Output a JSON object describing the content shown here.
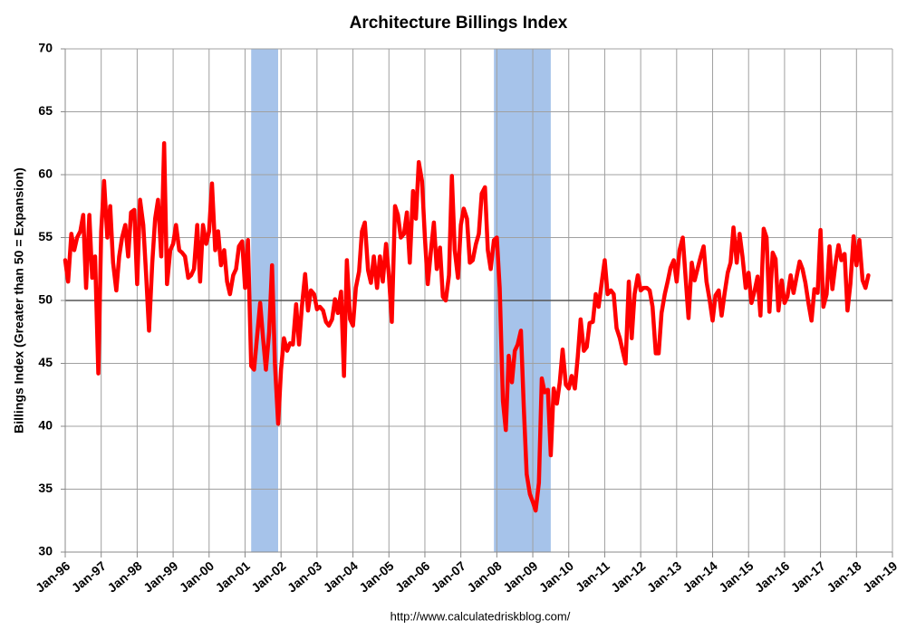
{
  "chart_data": {
    "type": "line",
    "title": "Architecture Billings Index",
    "y_label": "Billings Index (Greater than 50 = Expansion)",
    "source": "http://www.calculatedriskblog.com/",
    "xlim": [
      1996,
      2019
    ],
    "xticks": [
      {
        "value": 1996,
        "label": "Jan-96"
      },
      {
        "value": 1997,
        "label": "Jan-97"
      },
      {
        "value": 1998,
        "label": "Jan-98"
      },
      {
        "value": 1999,
        "label": "Jan-99"
      },
      {
        "value": 2000,
        "label": "Jan-00"
      },
      {
        "value": 2001,
        "label": "Jan-01"
      },
      {
        "value": 2002,
        "label": "Jan-02"
      },
      {
        "value": 2003,
        "label": "Jan-03"
      },
      {
        "value": 2004,
        "label": "Jan-04"
      },
      {
        "value": 2005,
        "label": "Jan-05"
      },
      {
        "value": 2006,
        "label": "Jan-06"
      },
      {
        "value": 2007,
        "label": "Jan-07"
      },
      {
        "value": 2008,
        "label": "Jan-08"
      },
      {
        "value": 2009,
        "label": "Jan-09"
      },
      {
        "value": 2010,
        "label": "Jan-10"
      },
      {
        "value": 2011,
        "label": "Jan-11"
      },
      {
        "value": 2012,
        "label": "Jan-12"
      },
      {
        "value": 2013,
        "label": "Jan-13"
      },
      {
        "value": 2014,
        "label": "Jan-14"
      },
      {
        "value": 2015,
        "label": "Jan-15"
      },
      {
        "value": 2016,
        "label": "Jan-16"
      },
      {
        "value": 2017,
        "label": "Jan-17"
      },
      {
        "value": 2018,
        "label": "Jan-18"
      },
      {
        "value": 2019,
        "label": "Jan-19"
      }
    ],
    "ylim": [
      30,
      70
    ],
    "yticks": [
      30,
      35,
      40,
      45,
      50,
      55,
      60,
      65,
      70
    ],
    "grid": true,
    "reference_line": 50,
    "recessions": [
      [
        2001.17,
        2001.92
      ],
      [
        2007.92,
        2009.5
      ]
    ],
    "recession_color": "#a6c3ea",
    "series": [
      {
        "name": "Billings Index",
        "color": "#ff0000",
        "x": [
          1996,
          1996.08,
          1996.17,
          1996.25,
          1996.33,
          1996.42,
          1996.5,
          1996.58,
          1996.67,
          1996.75,
          1996.83,
          1996.92,
          1997,
          1997.08,
          1997.17,
          1997.25,
          1997.33,
          1997.42,
          1997.5,
          1997.58,
          1997.67,
          1997.75,
          1997.83,
          1997.92,
          1998,
          1998.08,
          1998.17,
          1998.25,
          1998.33,
          1998.42,
          1998.5,
          1998.58,
          1998.67,
          1998.75,
          1998.83,
          1998.92,
          1999,
          1999.08,
          1999.17,
          1999.25,
          1999.33,
          1999.42,
          1999.5,
          1999.58,
          1999.67,
          1999.75,
          1999.83,
          1999.92,
          2000,
          2000.08,
          2000.17,
          2000.25,
          2000.33,
          2000.42,
          2000.5,
          2000.58,
          2000.67,
          2000.75,
          2000.83,
          2000.92,
          2001,
          2001.08,
          2001.17,
          2001.25,
          2001.33,
          2001.42,
          2001.5,
          2001.58,
          2001.67,
          2001.75,
          2001.83,
          2001.92,
          2002,
          2002.08,
          2002.17,
          2002.25,
          2002.33,
          2002.42,
          2002.5,
          2002.58,
          2002.67,
          2002.75,
          2002.83,
          2002.92,
          2003,
          2003.08,
          2003.17,
          2003.25,
          2003.33,
          2003.42,
          2003.5,
          2003.58,
          2003.67,
          2003.75,
          2003.83,
          2003.92,
          2004,
          2004.08,
          2004.17,
          2004.25,
          2004.33,
          2004.42,
          2004.5,
          2004.58,
          2004.67,
          2004.75,
          2004.83,
          2004.92,
          2005,
          2005.08,
          2005.17,
          2005.25,
          2005.33,
          2005.42,
          2005.5,
          2005.58,
          2005.67,
          2005.75,
          2005.83,
          2005.92,
          2006,
          2006.08,
          2006.17,
          2006.25,
          2006.33,
          2006.42,
          2006.5,
          2006.58,
          2006.67,
          2006.75,
          2006.83,
          2006.92,
          2007,
          2007.08,
          2007.17,
          2007.25,
          2007.33,
          2007.42,
          2007.5,
          2007.58,
          2007.67,
          2007.75,
          2007.83,
          2007.92,
          2008,
          2008.08,
          2008.17,
          2008.25,
          2008.33,
          2008.42,
          2008.5,
          2008.58,
          2008.67,
          2008.75,
          2008.83,
          2008.92,
          2009,
          2009.08,
          2009.17,
          2009.25,
          2009.33,
          2009.42,
          2009.5,
          2009.58,
          2009.67,
          2009.75,
          2009.83,
          2009.92,
          2010,
          2010.08,
          2010.17,
          2010.25,
          2010.33,
          2010.42,
          2010.5,
          2010.58,
          2010.67,
          2010.75,
          2010.83,
          2010.92,
          2011,
          2011.08,
          2011.17,
          2011.25,
          2011.33,
          2011.42,
          2011.5,
          2011.58,
          2011.67,
          2011.75,
          2011.83,
          2011.92,
          2012,
          2012.08,
          2012.17,
          2012.25,
          2012.33,
          2012.42,
          2012.5,
          2012.58,
          2012.67,
          2012.75,
          2012.83,
          2012.92,
          2013,
          2013.08,
          2013.17,
          2013.25,
          2013.33,
          2013.42,
          2013.5,
          2013.58,
          2013.67,
          2013.75,
          2013.83,
          2013.92,
          2014,
          2014.08,
          2014.17,
          2014.25,
          2014.33,
          2014.42,
          2014.5,
          2014.58,
          2014.67,
          2014.75,
          2014.83,
          2014.92,
          2015,
          2015.08,
          2015.17,
          2015.25,
          2015.33,
          2015.42,
          2015.5,
          2015.58,
          2015.67,
          2015.75,
          2015.83,
          2015.92,
          2016,
          2016.08,
          2016.17,
          2016.25,
          2016.33,
          2016.42,
          2016.5,
          2016.58,
          2016.67,
          2016.75,
          2016.83,
          2016.92,
          2017,
          2017.08,
          2017.17,
          2017.25,
          2017.33,
          2017.42,
          2017.5,
          2017.58,
          2017.67,
          2017.75,
          2017.83,
          2017.92,
          2018,
          2018.08,
          2018.17,
          2018.25,
          2018.33
        ],
        "values": [
          53.2,
          51.5,
          55.3,
          54,
          55,
          55.5,
          56.8,
          51,
          56.8,
          51.8,
          53.5,
          44.2,
          55.5,
          59.5,
          55,
          57.5,
          53,
          50.8,
          53.5,
          55,
          56,
          53.5,
          57,
          57.2,
          51.3,
          58,
          56,
          52,
          47.6,
          53,
          56.5,
          58,
          53.5,
          62.5,
          51.3,
          54,
          54.5,
          56,
          54,
          53.8,
          53.5,
          51.8,
          52,
          52.5,
          56,
          51.5,
          56,
          54.5,
          55.5,
          59.3,
          54,
          55.5,
          52.8,
          54,
          51.5,
          50.5,
          52,
          52.5,
          54.3,
          54.7,
          51,
          54.8,
          44.8,
          44.5,
          47,
          49.8,
          47,
          44.5,
          47.5,
          52.8,
          45,
          40.2,
          44.5,
          47,
          46,
          46.6,
          46.5,
          49.7,
          46.5,
          49.5,
          52.1,
          49.2,
          50.8,
          50.5,
          49.3,
          49.5,
          49.2,
          48.3,
          48,
          48.5,
          50.1,
          49,
          50.7,
          44,
          53.2,
          48.5,
          48,
          51,
          52.3,
          55.5,
          56.2,
          52.4,
          51.4,
          53.5,
          51,
          53.5,
          51.5,
          54.5,
          52,
          48.3,
          57.5,
          56.8,
          55,
          55.3,
          57,
          53,
          58.7,
          56.5,
          61,
          59.5,
          55,
          51.3,
          54,
          56.2,
          52.5,
          54.2,
          50.3,
          50,
          52,
          59.9,
          54,
          51.8,
          56,
          57.3,
          56.5,
          53,
          53.2,
          54.5,
          55.3,
          58.5,
          59,
          54,
          52.5,
          54.8,
          55,
          51,
          42,
          39.7,
          45.6,
          43.5,
          46,
          46.5,
          47.6,
          41.5,
          36.2,
          34.6,
          34,
          33.3,
          35.5,
          43.8,
          42.7,
          42.9,
          37.7,
          43,
          41.8,
          43.5,
          46.1,
          43.3,
          43,
          44,
          43,
          45.5,
          48.5,
          46,
          46.3,
          48.2,
          48.3,
          50.5,
          49.5,
          51.5,
          53.2,
          50.5,
          50.8,
          50.5,
          47.8,
          47,
          46,
          45,
          51.5,
          47,
          50.5,
          52,
          50.8,
          51,
          51,
          50.8,
          49.5,
          45.8,
          45.8,
          49,
          50.5,
          51.5,
          52.6,
          53.2,
          51.5,
          54,
          55,
          51.8,
          48.6,
          53,
          51.6,
          52.5,
          53.5,
          54.3,
          51.5,
          50,
          48.4,
          50.4,
          50.8,
          48.8,
          50.5,
          52.2,
          53,
          55.8,
          53,
          55.3,
          53.5,
          51,
          52.2,
          49.8,
          50.8,
          51.9,
          48.8,
          55.7,
          55,
          49.1,
          53.8,
          53.3,
          49.2,
          51.6,
          49.8,
          50.3,
          52,
          50.6,
          51.8,
          53.1,
          52.5,
          51.4,
          49.7,
          48.4,
          50.9,
          50.6,
          55.6,
          49.5,
          50.5,
          54.3,
          50.9,
          53,
          54.4,
          53.2,
          53.7,
          49.2,
          51.3,
          55.1,
          52.8,
          54.8,
          51.6,
          51,
          52
        ]
      }
    ]
  }
}
